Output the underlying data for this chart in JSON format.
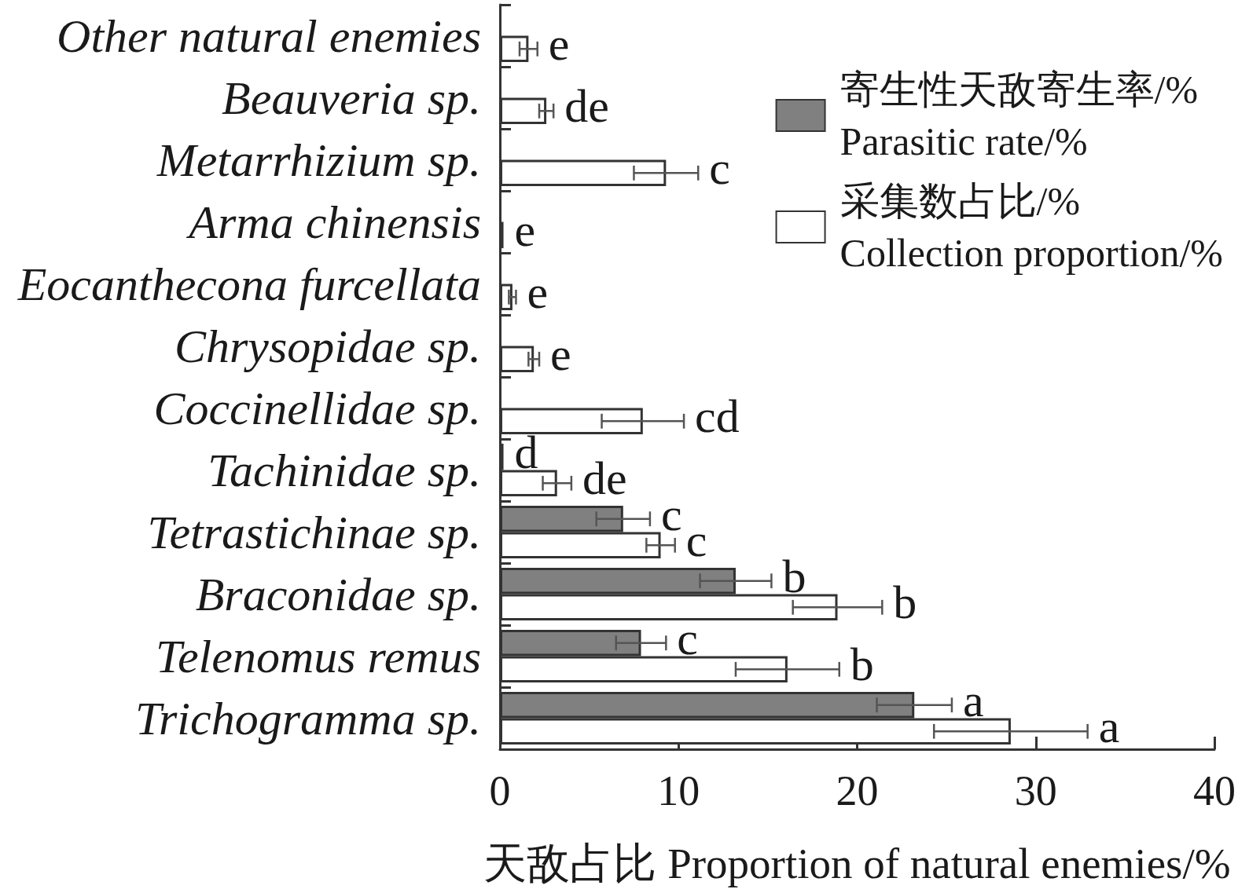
{
  "chart_data": {
    "type": "bar",
    "orientation": "horizontal",
    "categories": [
      "Other natural enemies",
      "Beauveria sp.",
      "Metarrhizium sp.",
      "Arma chinensis",
      "Eocanthecona furcellata",
      "Chrysopidae sp.",
      "Coccinellidae sp.",
      "Tachinidae sp.",
      "Tetrastichinae sp.",
      "Braconidae sp.",
      "Telenomus remus",
      "Trichogramma sp."
    ],
    "series": [
      {
        "name": "寄生性天敌寄生率/%\nParasitic rate/%",
        "color": "#808080",
        "values": [
          null,
          null,
          null,
          null,
          null,
          null,
          null,
          0.2,
          6.9,
          13.2,
          7.9,
          23.2
        ],
        "errors": [
          null,
          null,
          null,
          null,
          null,
          null,
          null,
          null,
          1.5,
          2.0,
          1.4,
          2.1
        ],
        "value_labels": [
          null,
          null,
          null,
          null,
          null,
          null,
          null,
          "d",
          "c",
          "b",
          "c",
          "a"
        ]
      },
      {
        "name": "采集数占比/%\nCollection proportion/%",
        "color": "#ffffff",
        "values": [
          1.6,
          2.6,
          9.3,
          0.2,
          0.7,
          1.9,
          8.0,
          3.2,
          9.0,
          18.9,
          16.1,
          28.6
        ],
        "errors": [
          0.5,
          0.4,
          1.8,
          null,
          0.2,
          0.3,
          2.3,
          0.8,
          0.8,
          2.5,
          2.9,
          4.3
        ],
        "value_labels": [
          "e",
          "de",
          "c",
          "e",
          "e",
          "e",
          "cd",
          "de",
          "c",
          "b",
          "b",
          "a"
        ]
      }
    ],
    "xlabel": "天敌占比 Proportion of natural enemies/%",
    "xlim": [
      0,
      40
    ],
    "xticks": [
      0,
      10,
      20,
      30,
      40
    ],
    "grid": false,
    "legend": "top right"
  }
}
